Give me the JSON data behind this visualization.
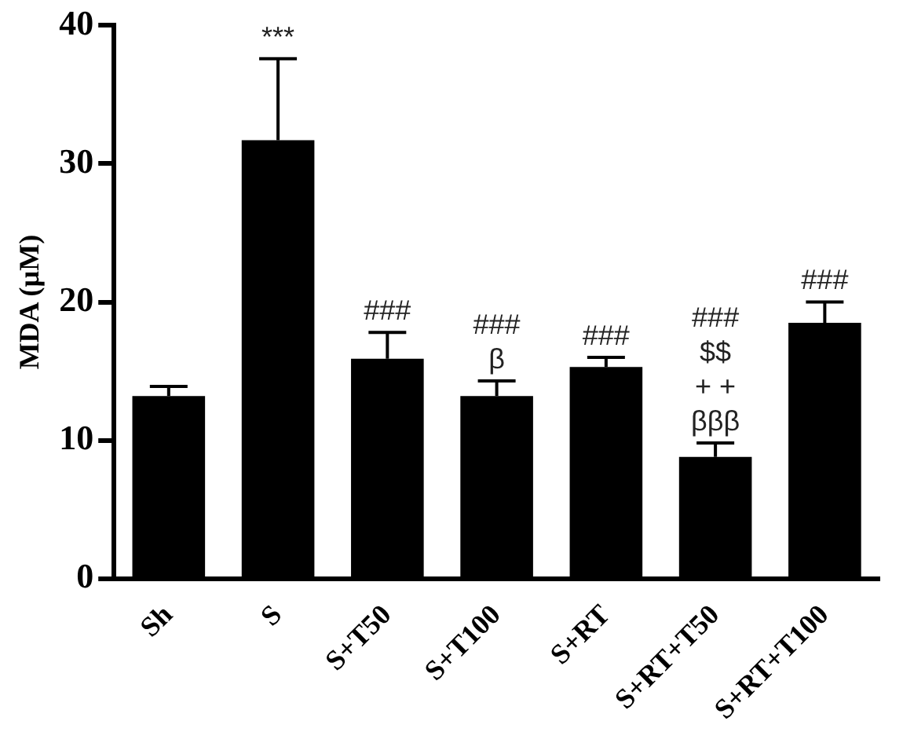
{
  "chart_data": {
    "type": "bar",
    "ylabel": "MDA (µM)",
    "categories": [
      "Sh",
      "S",
      "S+T50",
      "S+T100",
      "S+RT",
      "S+RT+T50",
      "S+RT+T100"
    ],
    "values": [
      13.2,
      31.7,
      15.9,
      13.2,
      15.3,
      8.8,
      18.5
    ],
    "errors": [
      [
        13.2,
        13.9
      ],
      [
        31.7,
        37.6
      ],
      [
        15.9,
        17.8
      ],
      [
        13.2,
        14.3
      ],
      [
        15.3,
        16.0
      ],
      [
        8.8,
        9.8
      ],
      [
        18.5,
        20.0
      ]
    ],
    "color": "#000000",
    "ylim": [
      0,
      40
    ],
    "yticks": [
      0,
      10,
      20,
      30,
      40
    ],
    "grid": false,
    "legend": false,
    "annotations": [
      {
        "text": "***",
        "x": "S",
        "y": 37.6
      },
      {
        "text": "###",
        "x": "S+T50",
        "y": 17.8
      },
      {
        "text": "###\nβ",
        "x": "S+T100",
        "y": 14.3
      },
      {
        "text": "###",
        "x": "S+RT",
        "y": 16.0
      },
      {
        "text": "###\n$$\n+ +\nβββ",
        "x": "S+RT+T50",
        "y": 9.8
      },
      {
        "text": "###",
        "x": "S+RT+T100",
        "y": 20.0
      }
    ]
  }
}
